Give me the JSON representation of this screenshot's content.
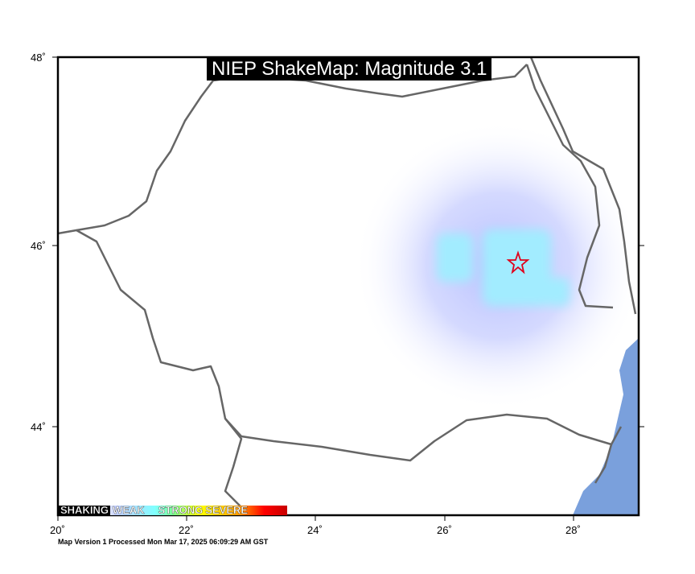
{
  "title": "NIEP ShakeMap: Magnitude 3.1",
  "footer": "Map Version 1 Processed Mon Mar 17, 2025 06:09:29 AM GST",
  "legend": {
    "labels": [
      "SHAKING",
      "WEAK",
      "STRONG",
      "SEVERE"
    ]
  },
  "axes": {
    "lon_ticks": [
      "20˚",
      "22˚",
      "24˚",
      "26˚",
      "28˚"
    ],
    "lat_ticks": [
      "48˚",
      "46˚",
      "44˚"
    ]
  },
  "epicenter": {
    "lon": 27.15,
    "lat": 45.8,
    "icon": "star-icon",
    "color": "#e0001a"
  },
  "colors": {
    "border": "#666666",
    "sea": "#7aa0dc",
    "intensity_weak": "#bcc6ff",
    "intensity_light": "#9fe8ff"
  }
}
